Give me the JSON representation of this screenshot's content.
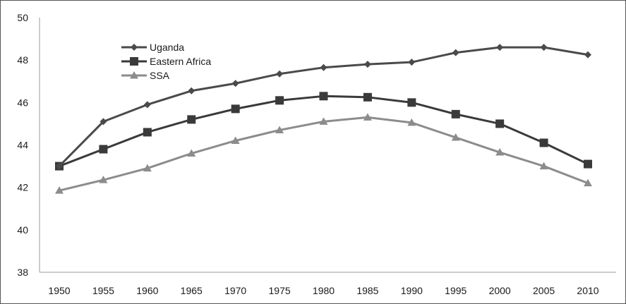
{
  "chart_data": {
    "type": "line",
    "title": "",
    "xlabel": "",
    "ylabel": "",
    "x": [
      1950,
      1955,
      1960,
      1965,
      1970,
      1975,
      1980,
      1985,
      1990,
      1995,
      2000,
      2005,
      2010
    ],
    "ylim": [
      38,
      50
    ],
    "yticks": [
      38,
      40,
      42,
      44,
      46,
      48,
      50
    ],
    "grid": false,
    "legend_position": "top-left",
    "series": [
      {
        "name": "Uganda",
        "marker": "diamond",
        "color": "#4a4a4a",
        "values": [
          43.0,
          45.1,
          45.9,
          46.55,
          46.9,
          47.35,
          47.65,
          47.8,
          47.9,
          48.35,
          48.6,
          48.6,
          48.25
        ]
      },
      {
        "name": "Eastern Africa",
        "marker": "square",
        "color": "#3a3a3a",
        "values": [
          43.0,
          43.8,
          44.6,
          45.2,
          45.7,
          46.1,
          46.3,
          46.25,
          46.0,
          45.45,
          45.0,
          44.1,
          43.1
        ]
      },
      {
        "name": "SSA",
        "marker": "triangle",
        "color": "#8c8c8c",
        "values": [
          41.85,
          42.35,
          42.9,
          43.6,
          44.2,
          44.7,
          45.1,
          45.3,
          45.05,
          44.35,
          43.65,
          43.0,
          42.2
        ]
      }
    ]
  }
}
